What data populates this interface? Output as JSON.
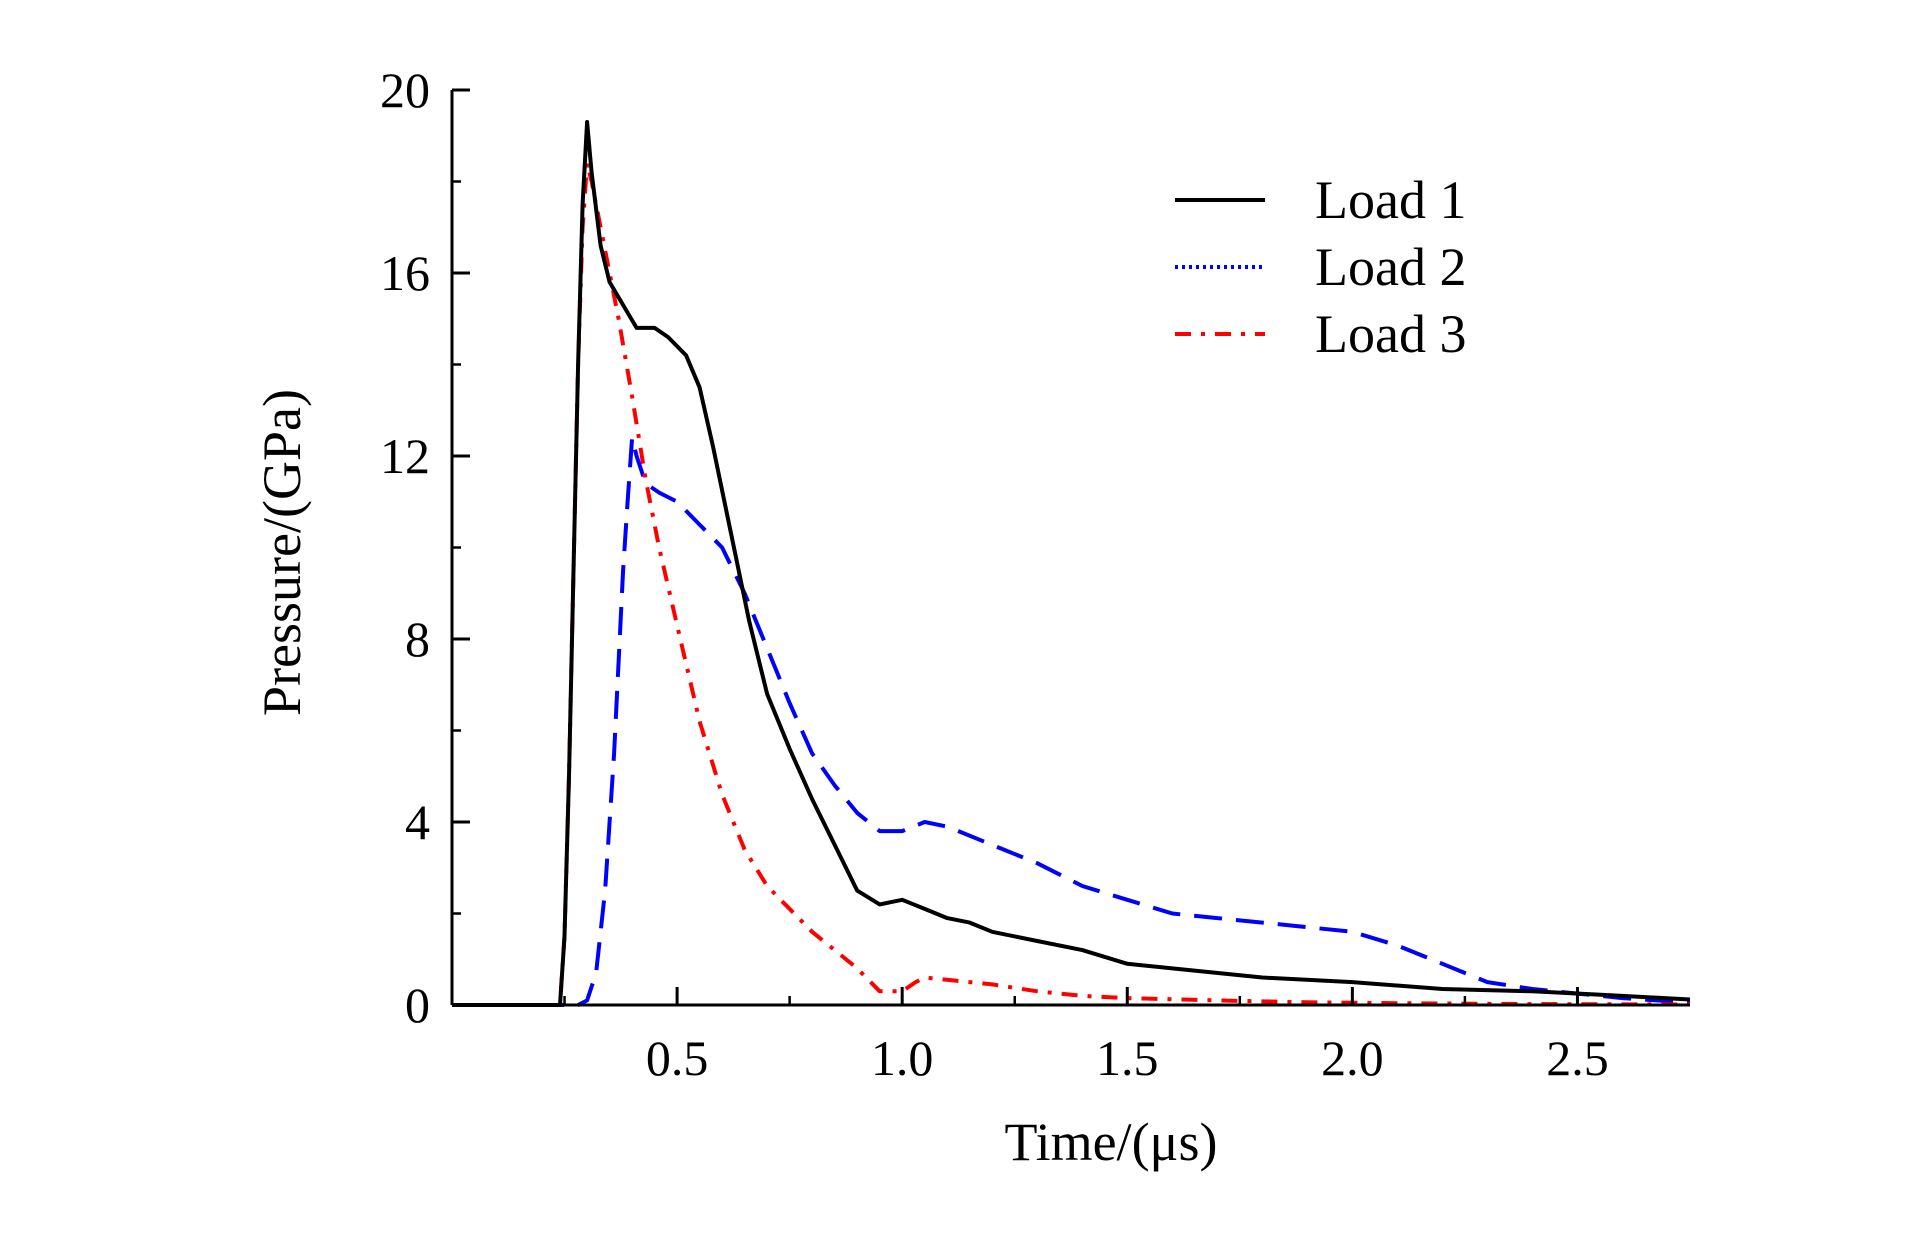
{
  "chart_data": {
    "type": "line",
    "title": "",
    "xlabel": "Time/(μs)",
    "ylabel": "Pressure/(GPa)",
    "xlim": [
      0,
      2.75
    ],
    "ylim": [
      0,
      20
    ],
    "xticks": [
      0.5,
      1.0,
      1.5,
      2.0,
      2.5
    ],
    "xtick_labels": [
      "0.5",
      "1.0",
      "1.5",
      "2.0",
      "2.5"
    ],
    "yticks": [
      0,
      4,
      8,
      12,
      16,
      20
    ],
    "ytick_labels": [
      "0",
      "4",
      "8",
      "12",
      "16",
      "20"
    ],
    "grid": false,
    "legend_position": "top-right",
    "series": [
      {
        "name": "Load 1",
        "color": "#000000",
        "dash": "solid",
        "legend_dash": "solid",
        "x": [
          0,
          0.24,
          0.25,
          0.26,
          0.27,
          0.28,
          0.29,
          0.3,
          0.31,
          0.33,
          0.35,
          0.38,
          0.41,
          0.45,
          0.48,
          0.52,
          0.55,
          0.58,
          0.62,
          0.66,
          0.7,
          0.75,
          0.8,
          0.85,
          0.9,
          0.95,
          1.0,
          1.05,
          1.1,
          1.15,
          1.2,
          1.3,
          1.4,
          1.5,
          1.6,
          1.8,
          2.0,
          2.2,
          2.4,
          2.6,
          2.75
        ],
        "y": [
          0,
          0,
          1.5,
          5.0,
          9.5,
          14.0,
          17.5,
          19.3,
          18.2,
          16.6,
          15.8,
          15.3,
          14.8,
          14.8,
          14.6,
          14.2,
          13.5,
          12.2,
          10.3,
          8.4,
          6.8,
          5.6,
          4.5,
          3.5,
          2.5,
          2.2,
          2.3,
          2.1,
          1.9,
          1.8,
          1.6,
          1.4,
          1.2,
          0.9,
          0.8,
          0.6,
          0.5,
          0.35,
          0.3,
          0.2,
          0.12
        ]
      },
      {
        "name": "Load 2",
        "color": "#0000ff",
        "dash": "28 14",
        "legend_dash": "3 4",
        "x": [
          0,
          0.28,
          0.3,
          0.32,
          0.34,
          0.36,
          0.37,
          0.38,
          0.39,
          0.4,
          0.41,
          0.43,
          0.46,
          0.5,
          0.55,
          0.6,
          0.65,
          0.7,
          0.75,
          0.8,
          0.85,
          0.9,
          0.95,
          1.0,
          1.05,
          1.1,
          1.2,
          1.3,
          1.4,
          1.5,
          1.6,
          1.7,
          1.8,
          2.0,
          2.1,
          2.2,
          2.3,
          2.4,
          2.5,
          2.6,
          2.75
        ],
        "y": [
          0,
          0,
          0.1,
          0.7,
          2.5,
          5.5,
          7.5,
          9.5,
          11.0,
          12.4,
          12.0,
          11.4,
          11.2,
          11.0,
          10.5,
          10.0,
          9.0,
          7.8,
          6.6,
          5.5,
          4.8,
          4.2,
          3.8,
          3.8,
          4.0,
          3.9,
          3.5,
          3.1,
          2.6,
          2.3,
          2.0,
          1.9,
          1.8,
          1.6,
          1.3,
          0.9,
          0.5,
          0.35,
          0.25,
          0.15,
          0.05
        ]
      },
      {
        "name": "Load 3",
        "color": "#ff0000",
        "dash": "16 10 4 10",
        "legend_dash": "16 10 4 10",
        "x": [
          0,
          0.24,
          0.25,
          0.26,
          0.27,
          0.28,
          0.29,
          0.3,
          0.31,
          0.33,
          0.35,
          0.37,
          0.4,
          0.43,
          0.46,
          0.5,
          0.55,
          0.6,
          0.65,
          0.7,
          0.75,
          0.8,
          0.85,
          0.9,
          0.95,
          1.0,
          1.03,
          1.05,
          1.1,
          1.2,
          1.3,
          1.4,
          1.5,
          1.7,
          1.9,
          2.1,
          2.4,
          2.75
        ],
        "y": [
          0,
          0,
          1.5,
          5.0,
          9.5,
          14.0,
          17.0,
          18.4,
          18.0,
          17.0,
          16.0,
          15.0,
          13.3,
          11.5,
          10.0,
          8.3,
          6.2,
          4.6,
          3.4,
          2.6,
          2.1,
          1.6,
          1.2,
          0.8,
          0.3,
          0.3,
          0.5,
          0.6,
          0.55,
          0.45,
          0.3,
          0.2,
          0.15,
          0.1,
          0.06,
          0.04,
          0.02,
          0.01
        ]
      }
    ]
  }
}
